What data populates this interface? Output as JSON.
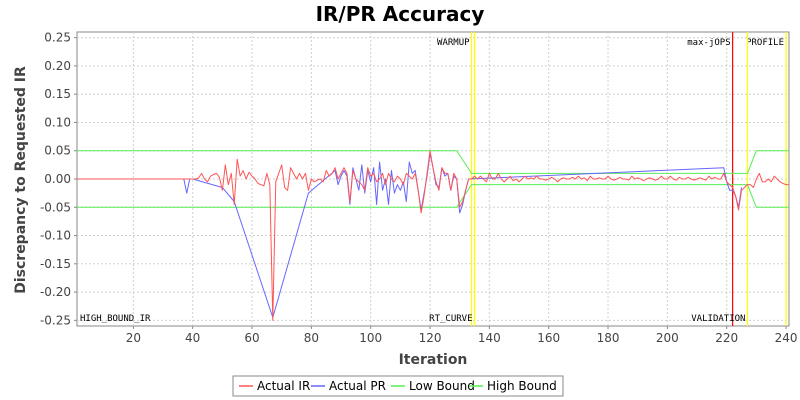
{
  "chart_data": {
    "type": "line",
    "title": "IR/PR Accuracy",
    "xlabel": "Iteration",
    "ylabel": "Discrepancy to Requested IR",
    "xlim": [
      1,
      241
    ],
    "ylim": [
      -0.26,
      0.26
    ],
    "x_ticks": [
      20,
      40,
      60,
      80,
      100,
      120,
      140,
      160,
      180,
      200,
      220,
      240
    ],
    "y_ticks": [
      0.25,
      0.2,
      0.15,
      0.1,
      0.05,
      0.0,
      -0.05,
      -0.1,
      -0.15,
      -0.2,
      -0.25
    ],
    "grid": true,
    "legend_position": "bottom",
    "markers": [
      {
        "label": "WARMUP",
        "x": 134,
        "color": "#ffff00",
        "label_position": "top"
      },
      {
        "label": "max-jOPS",
        "x": 222,
        "color": "#ff0000",
        "label_position": "top"
      },
      {
        "label": "PROFILE",
        "x": 240,
        "color": "#ffff00",
        "label_position": "top"
      },
      {
        "label": "HIGH_BOUND_IR",
        "x": 1,
        "color": "",
        "label_position": "bottom"
      },
      {
        "label": "RT_CURVE",
        "x": 135,
        "color": "#ffff00",
        "label_position": "bottom"
      },
      {
        "label": "VALIDATION",
        "x": 227,
        "color": "#ffff00",
        "label_position": "bottom"
      }
    ],
    "series": [
      {
        "name": "Actual IR",
        "color": "#ff5555",
        "points": [
          [
            1,
            0
          ],
          [
            37,
            0
          ],
          [
            38,
            0
          ],
          [
            39,
            0
          ],
          [
            40,
            0
          ],
          [
            41,
            0
          ],
          [
            42,
            0.002
          ],
          [
            43,
            0.01
          ],
          [
            44,
            0
          ],
          [
            45,
            -0.005
          ],
          [
            46,
            0.005
          ],
          [
            47,
            0.008
          ],
          [
            48,
            0.01
          ],
          [
            49,
            0.003
          ],
          [
            50,
            -0.02
          ],
          [
            51,
            0.025
          ],
          [
            52,
            -0.01
          ],
          [
            53,
            0.01
          ],
          [
            54,
            -0.045
          ],
          [
            55,
            0.035
          ],
          [
            56,
            0.005
          ],
          [
            57,
            0.015
          ],
          [
            58,
            0
          ],
          [
            59,
            0.012
          ],
          [
            60,
            0.005
          ],
          [
            61,
            0
          ],
          [
            62,
            -0.008
          ],
          [
            63,
            -0.01
          ],
          [
            64,
            -0.012
          ],
          [
            65,
            0.01
          ],
          [
            66,
            -0.01
          ],
          [
            67,
            -0.25
          ],
          [
            68,
            -0.005
          ],
          [
            69,
            0.01
          ],
          [
            70,
            0.025
          ],
          [
            71,
            -0.015
          ],
          [
            72,
            -0.02
          ],
          [
            73,
            0.02
          ],
          [
            74,
            0.01
          ],
          [
            75,
            0
          ],
          [
            76,
            0.01
          ],
          [
            77,
            0
          ],
          [
            78,
            0.01
          ],
          [
            79,
            -0.02
          ],
          [
            80,
            0
          ],
          [
            81,
            -0.005
          ],
          [
            82,
            -0.002
          ],
          [
            83,
            0
          ],
          [
            84,
            -0.005
          ],
          [
            85,
            0.015
          ],
          [
            86,
            0.005
          ],
          [
            87,
            0.01
          ],
          [
            88,
            0.02
          ],
          [
            89,
            0
          ],
          [
            90,
            0.01
          ],
          [
            91,
            0.02
          ],
          [
            92,
            0.01
          ],
          [
            93,
            -0.04
          ],
          [
            94,
            0.015
          ],
          [
            95,
            0
          ],
          [
            96,
            -0.005
          ],
          [
            97,
            -0.01
          ],
          [
            98,
            -0.02
          ],
          [
            99,
            0.02
          ],
          [
            100,
            0.005
          ],
          [
            101,
            0.01
          ],
          [
            102,
            -0.005
          ],
          [
            103,
            0
          ],
          [
            104,
            0.01
          ],
          [
            105,
            -0.01
          ],
          [
            106,
            0.01
          ],
          [
            107,
            0
          ],
          [
            108,
            -0.005
          ],
          [
            109,
            0.005
          ],
          [
            110,
            0
          ],
          [
            111,
            -0.01
          ],
          [
            112,
            0.01
          ],
          [
            113,
            0.005
          ],
          [
            114,
            0
          ],
          [
            115,
            0.01
          ],
          [
            116,
            -0.02
          ],
          [
            117,
            -0.06
          ],
          [
            118,
            -0.03
          ],
          [
            119,
            0.01
          ],
          [
            120,
            0.05
          ],
          [
            121,
            0.02
          ],
          [
            122,
            -0.005
          ],
          [
            123,
            -0.02
          ],
          [
            124,
            0.02
          ],
          [
            125,
            0.01
          ],
          [
            126,
            0.01
          ],
          [
            127,
            -0.02
          ],
          [
            128,
            0.01
          ],
          [
            129,
            0
          ],
          [
            130,
            -0.05
          ],
          [
            131,
            -0.04
          ],
          [
            132,
            -0.02
          ],
          [
            133,
            0
          ],
          [
            134,
            0
          ],
          [
            135,
            0.005
          ],
          [
            136,
            0
          ],
          [
            137,
            0.005
          ],
          [
            138,
            0
          ],
          [
            139,
            -0.005
          ],
          [
            140,
            0.01
          ],
          [
            141,
            0
          ],
          [
            142,
            0
          ],
          [
            143,
            0.01
          ],
          [
            144,
            0
          ],
          [
            145,
            -0.005
          ],
          [
            146,
            0
          ],
          [
            147,
            0.005
          ],
          [
            148,
            -0.003
          ],
          [
            149,
            0
          ],
          [
            150,
            -0.005
          ],
          [
            151,
            0
          ],
          [
            152,
            0.005
          ],
          [
            153,
            0
          ],
          [
            154,
            0.002
          ],
          [
            155,
            0
          ],
          [
            156,
            0.005
          ],
          [
            157,
            0
          ],
          [
            158,
            0
          ],
          [
            159,
            -0.002
          ],
          [
            160,
            0
          ],
          [
            161,
            0.003
          ],
          [
            162,
            0
          ],
          [
            163,
            -0.005
          ],
          [
            164,
            0
          ],
          [
            165,
            0.002
          ],
          [
            166,
            0
          ],
          [
            167,
            0
          ],
          [
            168,
            0.003
          ],
          [
            169,
            0
          ],
          [
            170,
            0.005
          ],
          [
            171,
            0
          ],
          [
            172,
            0.002
          ],
          [
            173,
            -0.003
          ],
          [
            174,
            0.005
          ],
          [
            175,
            0
          ],
          [
            176,
            0
          ],
          [
            177,
            0.002
          ],
          [
            178,
            0
          ],
          [
            179,
            0
          ],
          [
            180,
            0.005
          ],
          [
            181,
            0
          ],
          [
            182,
            -0.002
          ],
          [
            183,
            0
          ],
          [
            184,
            0.003
          ],
          [
            185,
            0
          ],
          [
            186,
            0
          ],
          [
            187,
            -0.002
          ],
          [
            188,
            0.005
          ],
          [
            189,
            0
          ],
          [
            190,
            0.002
          ],
          [
            191,
            0
          ],
          [
            192,
            -0.003
          ],
          [
            193,
            0
          ],
          [
            194,
            0.002
          ],
          [
            195,
            0
          ],
          [
            196,
            -0.002
          ],
          [
            197,
            0
          ],
          [
            198,
            0.005
          ],
          [
            199,
            0
          ],
          [
            200,
            0
          ],
          [
            201,
            0.005
          ],
          [
            202,
            0
          ],
          [
            203,
            -0.002
          ],
          [
            204,
            0.003
          ],
          [
            205,
            0
          ],
          [
            206,
            0
          ],
          [
            207,
            0.003
          ],
          [
            208,
            0
          ],
          [
            209,
            -0.002
          ],
          [
            210,
            0
          ],
          [
            211,
            0.002
          ],
          [
            212,
            0
          ],
          [
            213,
            -0.002
          ],
          [
            214,
            0.005
          ],
          [
            215,
            0
          ],
          [
            216,
            0.003
          ],
          [
            217,
            0
          ],
          [
            218,
            0
          ],
          [
            219,
            0.01
          ],
          [
            220,
            -0.005
          ],
          [
            221,
            -0.01
          ],
          [
            222,
            -0.015
          ],
          [
            223,
            -0.03
          ],
          [
            224,
            -0.055
          ],
          [
            225,
            -0.02
          ],
          [
            226,
            -0.015
          ],
          [
            227,
            -0.01
          ],
          [
            228,
            -0.01
          ],
          [
            229,
            -0.015
          ],
          [
            230,
            0
          ],
          [
            231,
            0.01
          ],
          [
            232,
            -0.005
          ],
          [
            233,
            -0.005
          ],
          [
            234,
            0
          ],
          [
            235,
            -0.005
          ],
          [
            236,
            0.005
          ],
          [
            237,
            0
          ],
          [
            238,
            -0.005
          ],
          [
            239,
            -0.008
          ],
          [
            240,
            -0.01
          ],
          [
            241,
            -0.01
          ]
        ]
      },
      {
        "name": "Actual PR",
        "color": "#6666ff",
        "points": [
          [
            37,
            0
          ],
          [
            38,
            -0.025
          ],
          [
            39,
            0
          ],
          [
            40,
            0
          ],
          [
            50,
            -0.015
          ],
          [
            54,
            -0.04
          ],
          [
            67,
            -0.245
          ],
          [
            79,
            -0.025
          ],
          [
            88,
            0.015
          ],
          [
            89,
            -0.01
          ],
          [
            90,
            0.005
          ],
          [
            91,
            0.015
          ],
          [
            92,
            0.005
          ],
          [
            93,
            -0.045
          ],
          [
            94,
            0.02
          ],
          [
            95,
            0
          ],
          [
            96,
            -0.02
          ],
          [
            97,
            0.025
          ],
          [
            98,
            -0.025
          ],
          [
            99,
            0.015
          ],
          [
            100,
            -0.005
          ],
          [
            101,
            0.02
          ],
          [
            102,
            -0.045
          ],
          [
            103,
            0.03
          ],
          [
            104,
            -0.02
          ],
          [
            105,
            0
          ],
          [
            106,
            -0.045
          ],
          [
            107,
            0.015
          ],
          [
            108,
            -0.025
          ],
          [
            109,
            -0.01
          ],
          [
            110,
            -0.02
          ],
          [
            111,
            -0.005
          ],
          [
            112,
            -0.04
          ],
          [
            113,
            0.03
          ],
          [
            114,
            0.01
          ],
          [
            115,
            0.015
          ],
          [
            116,
            -0.02
          ],
          [
            117,
            -0.055
          ],
          [
            118,
            -0.025
          ],
          [
            119,
            0.005
          ],
          [
            120,
            0.045
          ],
          [
            121,
            0.02
          ],
          [
            122,
            -0.01
          ],
          [
            123,
            -0.015
          ],
          [
            124,
            0.02
          ],
          [
            125,
            0.005
          ],
          [
            126,
            0.01
          ],
          [
            127,
            -0.02
          ],
          [
            128,
            0.005
          ],
          [
            129,
            0
          ],
          [
            130,
            -0.06
          ],
          [
            131,
            -0.045
          ],
          [
            132,
            -0.02
          ],
          [
            133,
            0
          ],
          [
            219,
            0.02
          ],
          [
            220,
            -0.005
          ],
          [
            221,
            -0.02
          ],
          [
            222,
            -0.02
          ],
          [
            223,
            -0.03
          ],
          [
            224,
            -0.05
          ],
          [
            225,
            -0.015
          ]
        ]
      },
      {
        "name": "Low Bound",
        "color": "#55ee55",
        "points": [
          [
            1,
            -0.05
          ],
          [
            129,
            -0.05
          ],
          [
            134,
            -0.01
          ],
          [
            221,
            -0.01
          ],
          [
            227,
            -0.01
          ],
          [
            230,
            -0.05
          ],
          [
            241,
            -0.05
          ]
        ]
      },
      {
        "name": "High Bound",
        "color": "#55ee55",
        "points": [
          [
            1,
            0.05
          ],
          [
            129,
            0.05
          ],
          [
            134,
            0.01
          ],
          [
            221,
            0.01
          ],
          [
            227,
            0.01
          ],
          [
            230,
            0.05
          ],
          [
            241,
            0.05
          ]
        ]
      }
    ]
  }
}
